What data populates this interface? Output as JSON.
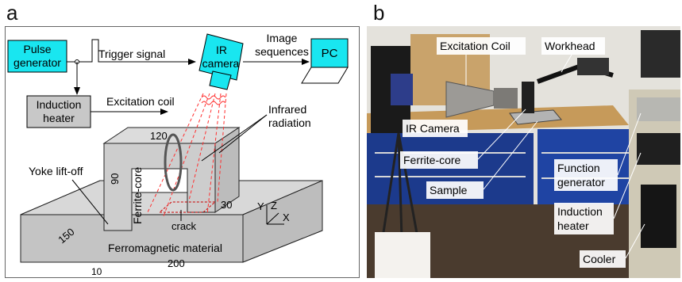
{
  "panel_a": {
    "letter": "a",
    "pulse_generator": [
      "Pulse",
      "generator"
    ],
    "trigger_signal": "Trigger signal",
    "ir_camera": [
      "IR",
      "camera"
    ],
    "image_sequences": [
      "Image",
      "sequences"
    ],
    "pc": "PC",
    "induction_heater": [
      "Induction",
      "heater"
    ],
    "excitation_coil": "Excitation coil",
    "infrared_radiation": [
      "Infrared",
      "radiation"
    ],
    "yoke_lift_off": "Yoke lift-off",
    "ferrite_core": "Ferrite-core",
    "crack": "crack",
    "ferromagnetic_material": "Ferromagnetic material",
    "dims": {
      "d120": "120",
      "d90": "90",
      "d30": "30",
      "d150": "150",
      "d200": "200",
      "d10": "10"
    },
    "axes": {
      "x": "X",
      "y": "Y",
      "z": "Z"
    },
    "colors": {
      "box_cyan": "#19e6f0",
      "box_gray": "#c8c8c8",
      "radiation": "#ff3030"
    }
  },
  "panel_b": {
    "letter": "b",
    "labels": {
      "excitation_coil": "Excitation Coil",
      "workhead": "Workhead",
      "ir_camera": "IR Camera",
      "ferrite_core": "Ferrite-core",
      "sample": "Sample",
      "function_generator": [
        "Function",
        "generator"
      ],
      "induction_heater": [
        "Induction",
        "heater"
      ],
      "cooler": "Cooler"
    }
  }
}
